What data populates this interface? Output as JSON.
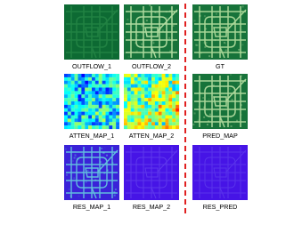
{
  "panels": [
    {
      "label": "OUTFLOW_1"
    },
    {
      "label": "OUTFLOW_2"
    },
    {
      "label": "GT"
    },
    {
      "label": "ATTEN_MAP_1"
    },
    {
      "label": "ATTEN_MAP_2"
    },
    {
      "label": "PRED_MAP"
    },
    {
      "label": "RES_MAP_1"
    },
    {
      "label": "RES_MAP_2"
    },
    {
      "label": "RES_PRED"
    }
  ]
}
